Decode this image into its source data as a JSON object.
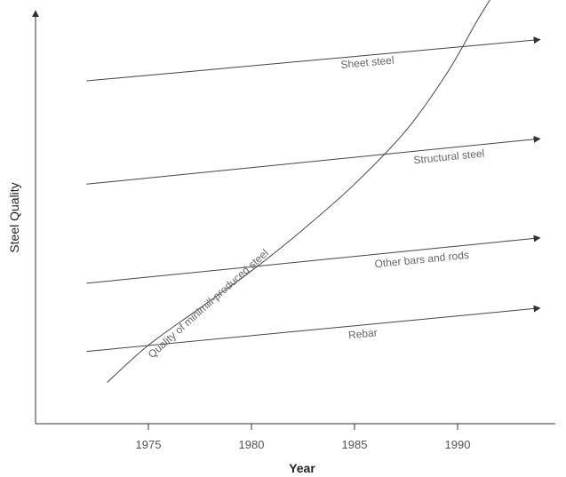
{
  "chart_data": {
    "type": "line",
    "title": "",
    "xlabel": "Year",
    "ylabel": "Steel Quality",
    "x_ticks": [
      1975,
      1980,
      1985,
      1990
    ],
    "xlim": [
      1970.5,
      1995
    ],
    "ylim": [
      0,
      100
    ],
    "y_ticks_shown": false,
    "grid": false,
    "series": [
      {
        "label": "Sheet steel",
        "x": [
          1972,
          1994
        ],
        "y": [
          83,
          93
        ]
      },
      {
        "label": "Structural steel",
        "x": [
          1972,
          1994
        ],
        "y": [
          58,
          69
        ]
      },
      {
        "label": "Other bars and rods",
        "x": [
          1972,
          1994
        ],
        "y": [
          34,
          45
        ]
      },
      {
        "label": "Rebar",
        "x": [
          1972,
          1994
        ],
        "y": [
          17.5,
          28
        ]
      },
      {
        "label": "Quality of minimill-produced steel",
        "x": [
          1973,
          1975,
          1977.5,
          1980,
          1982.5,
          1985,
          1987.5,
          1989.5,
          1991,
          1992
        ],
        "y": [
          10,
          19,
          28,
          37,
          47,
          58,
          71,
          85,
          98,
          106
        ]
      }
    ]
  }
}
